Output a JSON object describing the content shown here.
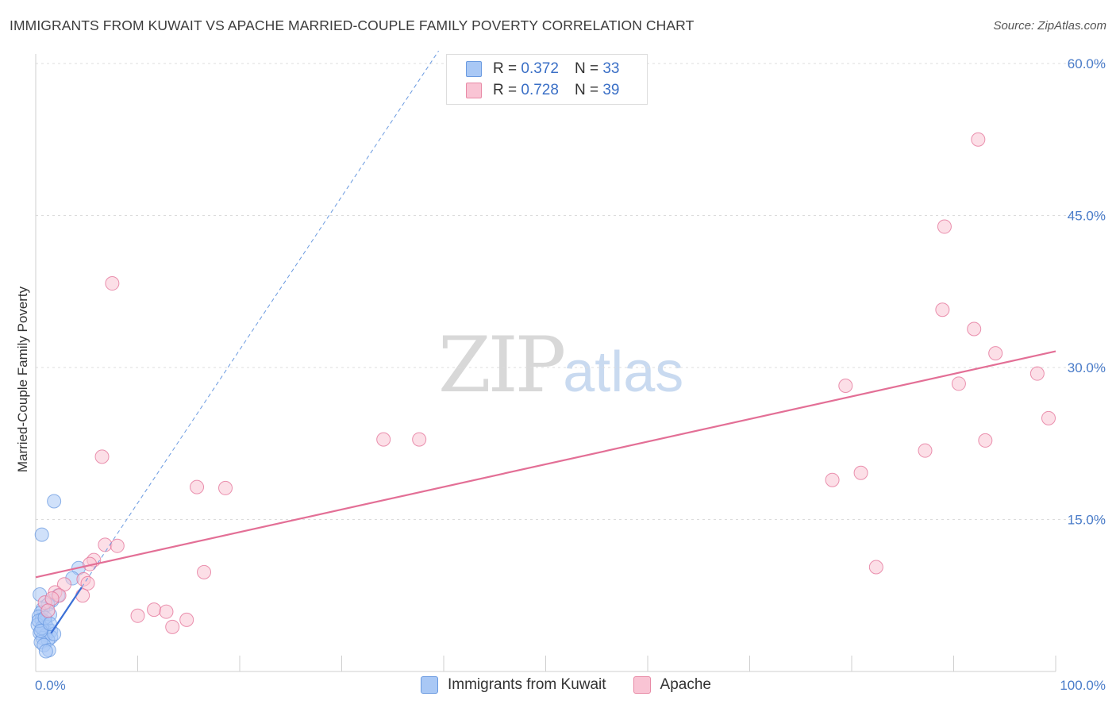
{
  "title": "IMMIGRANTS FROM KUWAIT VS APACHE MARRIED-COUPLE FAMILY POVERTY CORRELATION CHART",
  "source": "Source: ZipAtlas.com",
  "watermark": {
    "zip": "ZIP",
    "atlas": "atlas"
  },
  "legend": {
    "rows": [
      {
        "r_label": "R = ",
        "r_value": "0.372",
        "n_label": "N = ",
        "n_value": "33",
        "color": "#a9c8f5",
        "border": "#6a9ae0"
      },
      {
        "r_label": "R = ",
        "r_value": "0.728",
        "n_label": "N = ",
        "n_value": "39",
        "color": "#f9c4d4",
        "border": "#e88aa6"
      }
    ]
  },
  "bottom_legend": [
    {
      "label": "Immigrants from Kuwait",
      "color": "#a9c8f5",
      "border": "#6a9ae0"
    },
    {
      "label": "Apache",
      "color": "#f9c4d4",
      "border": "#e88aa6"
    }
  ],
  "chart_data": {
    "type": "scatter",
    "title": "IMMIGRANTS FROM KUWAIT VS APACHE MARRIED-COUPLE FAMILY POVERTY CORRELATION CHART",
    "xlabel": "",
    "ylabel": "Married-Couple Family Poverty",
    "xlim": [
      0,
      100
    ],
    "ylim": [
      0,
      60
    ],
    "x_tick_labels": [
      {
        "value": 0,
        "label": "0.0%"
      },
      {
        "value": 100,
        "label": "100.0%"
      }
    ],
    "y_tick_labels": [
      {
        "value": 15,
        "label": "15.0%"
      },
      {
        "value": 30,
        "label": "30.0%"
      },
      {
        "value": 45,
        "label": "45.0%"
      },
      {
        "value": 60,
        "label": "60.0%"
      }
    ],
    "series": [
      {
        "name": "Immigrants from Kuwait",
        "color": "#6a9ae0",
        "fill": "#a9c8f5",
        "R": 0.372,
        "N": 33,
        "points": [
          [
            1.8,
            16.8
          ],
          [
            0.6,
            13.5
          ],
          [
            4.2,
            10.2
          ],
          [
            3.6,
            9.2
          ],
          [
            0.4,
            7.6
          ],
          [
            1.6,
            7.0
          ],
          [
            1.2,
            6.6
          ],
          [
            0.7,
            6.2
          ],
          [
            0.5,
            5.8
          ],
          [
            1.4,
            5.6
          ],
          [
            0.3,
            5.4
          ],
          [
            0.6,
            5.1
          ],
          [
            0.9,
            4.9
          ],
          [
            0.2,
            4.6
          ],
          [
            1.1,
            4.4
          ],
          [
            0.8,
            4.1
          ],
          [
            1.5,
            4.0
          ],
          [
            0.4,
            3.8
          ],
          [
            1.0,
            3.6
          ],
          [
            1.5,
            3.4
          ],
          [
            0.7,
            3.3
          ],
          [
            1.2,
            3.1
          ],
          [
            0.5,
            2.9
          ],
          [
            0.8,
            2.6
          ],
          [
            1.3,
            2.1
          ],
          [
            1.0,
            2.0
          ],
          [
            0.6,
            4.3
          ],
          [
            1.8,
            3.7
          ],
          [
            0.3,
            5.0
          ],
          [
            0.9,
            5.3
          ],
          [
            0.5,
            4.0
          ],
          [
            1.4,
            4.7
          ],
          [
            2.2,
            7.5
          ]
        ],
        "trend": {
          "x0": 0,
          "y0": 1.5,
          "x1": 40,
          "y1": 62,
          "solid_until_x": 4.5
        }
      },
      {
        "name": "Apache",
        "color": "#e36f96",
        "fill": "#f9c4d4",
        "R": 0.728,
        "N": 39,
        "points": [
          [
            7.5,
            38.3
          ],
          [
            6.5,
            21.2
          ],
          [
            15.8,
            18.2
          ],
          [
            18.6,
            18.1
          ],
          [
            34.1,
            22.9
          ],
          [
            37.6,
            22.9
          ],
          [
            6.8,
            12.5
          ],
          [
            8.0,
            12.4
          ],
          [
            5.7,
            11.0
          ],
          [
            5.3,
            10.6
          ],
          [
            16.5,
            9.8
          ],
          [
            4.7,
            9.1
          ],
          [
            5.1,
            8.7
          ],
          [
            2.8,
            8.6
          ],
          [
            1.9,
            7.8
          ],
          [
            2.3,
            7.5
          ],
          [
            4.6,
            7.5
          ],
          [
            0.9,
            6.8
          ],
          [
            1.6,
            7.2
          ],
          [
            11.6,
            6.1
          ],
          [
            12.8,
            5.9
          ],
          [
            10.0,
            5.5
          ],
          [
            14.8,
            5.1
          ],
          [
            13.4,
            4.4
          ],
          [
            92.4,
            52.5
          ],
          [
            89.1,
            43.9
          ],
          [
            88.9,
            35.7
          ],
          [
            92.0,
            33.8
          ],
          [
            94.1,
            31.4
          ],
          [
            98.2,
            29.4
          ],
          [
            79.4,
            28.2
          ],
          [
            90.5,
            28.4
          ],
          [
            99.3,
            25.0
          ],
          [
            93.1,
            22.8
          ],
          [
            87.2,
            21.8
          ],
          [
            80.9,
            19.6
          ],
          [
            78.1,
            18.9
          ],
          [
            82.4,
            10.3
          ],
          [
            1.2,
            6.0
          ]
        ],
        "trend": {
          "x0": 0,
          "y0": 9.3,
          "x1": 100,
          "y1": 31.6
        }
      }
    ]
  }
}
